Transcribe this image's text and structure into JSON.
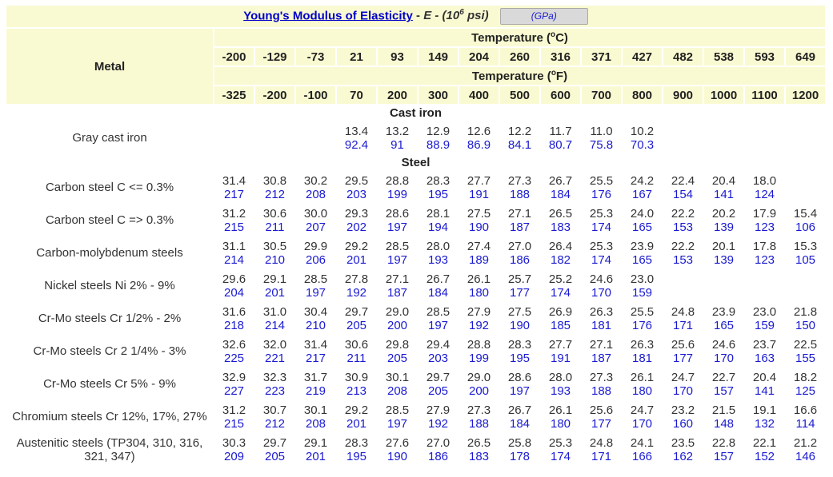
{
  "title": {
    "link_text": "Young's Modulus of Elasticity",
    "separator": "- ",
    "symbol": "E",
    "unit_prefix": " - (10",
    "unit_exp": "6",
    "unit_suffix": " psi)",
    "gpa_button": "(GPa)"
  },
  "headers": {
    "metal": "Metal",
    "temp_c_label": "Temperature (",
    "temp_c_unit": "C)",
    "temp_f_label": "Temperature (",
    "temp_f_unit": "F)",
    "degree": "o",
    "celsius": [
      "-200",
      "-129",
      "-73",
      "21",
      "93",
      "149",
      "204",
      "260",
      "316",
      "371",
      "427",
      "482",
      "538",
      "593",
      "649"
    ],
    "fahrenheit": [
      "-325",
      "-200",
      "-100",
      "70",
      "200",
      "300",
      "400",
      "500",
      "600",
      "700",
      "800",
      "900",
      "1000",
      "1100",
      "1200"
    ]
  },
  "sections": [
    {
      "name": "Cast iron",
      "rows": [
        {
          "metal": "Gray cast iron",
          "psi": [
            "",
            "",
            "",
            "13.4",
            "13.2",
            "12.9",
            "12.6",
            "12.2",
            "11.7",
            "11.0",
            "10.2",
            "",
            "",
            "",
            ""
          ],
          "gpa": [
            "",
            "",
            "",
            "92.4",
            "91",
            "88.9",
            "86.9",
            "84.1",
            "80.7",
            "75.8",
            "70.3",
            "",
            "",
            "",
            ""
          ]
        }
      ]
    },
    {
      "name": "Steel",
      "rows": [
        {
          "metal": "Carbon steel C <= 0.3%",
          "psi": [
            "31.4",
            "30.8",
            "30.2",
            "29.5",
            "28.8",
            "28.3",
            "27.7",
            "27.3",
            "26.7",
            "25.5",
            "24.2",
            "22.4",
            "20.4",
            "18.0",
            ""
          ],
          "gpa": [
            "217",
            "212",
            "208",
            "203",
            "199",
            "195",
            "191",
            "188",
            "184",
            "176",
            "167",
            "154",
            "141",
            "124",
            ""
          ]
        },
        {
          "metal": "Carbon steel C => 0.3%",
          "psi": [
            "31.2",
            "30.6",
            "30.0",
            "29.3",
            "28.6",
            "28.1",
            "27.5",
            "27.1",
            "26.5",
            "25.3",
            "24.0",
            "22.2",
            "20.2",
            "17.9",
            "15.4"
          ],
          "gpa": [
            "215",
            "211",
            "207",
            "202",
            "197",
            "194",
            "190",
            "187",
            "183",
            "174",
            "165",
            "153",
            "139",
            "123",
            "106"
          ]
        },
        {
          "metal": "Carbon-molybdenum steels",
          "psi": [
            "31.1",
            "30.5",
            "29.9",
            "29.2",
            "28.5",
            "28.0",
            "27.4",
            "27.0",
            "26.4",
            "25.3",
            "23.9",
            "22.2",
            "20.1",
            "17.8",
            "15.3"
          ],
          "gpa": [
            "214",
            "210",
            "206",
            "201",
            "197",
            "193",
            "189",
            "186",
            "182",
            "174",
            "165",
            "153",
            "139",
            "123",
            "105"
          ]
        },
        {
          "metal": "Nickel steels Ni 2% - 9%",
          "psi": [
            "29.6",
            "29.1",
            "28.5",
            "27.8",
            "27.1",
            "26.7",
            "26.1",
            "25.7",
            "25.2",
            "24.6",
            "23.0",
            "",
            "",
            "",
            ""
          ],
          "gpa": [
            "204",
            "201",
            "197",
            "192",
            "187",
            "184",
            "180",
            "177",
            "174",
            "170",
            "159",
            "",
            "",
            "",
            ""
          ]
        },
        {
          "metal": "Cr-Mo steels Cr 1/2% - 2%",
          "psi": [
            "31.6",
            "31.0",
            "30.4",
            "29.7",
            "29.0",
            "28.5",
            "27.9",
            "27.5",
            "26.9",
            "26.3",
            "25.5",
            "24.8",
            "23.9",
            "23.0",
            "21.8"
          ],
          "gpa": [
            "218",
            "214",
            "210",
            "205",
            "200",
            "197",
            "192",
            "190",
            "185",
            "181",
            "176",
            "171",
            "165",
            "159",
            "150"
          ]
        },
        {
          "metal": "Cr-Mo steels Cr 2 1/4% - 3%",
          "psi": [
            "32.6",
            "32.0",
            "31.4",
            "30.6",
            "29.8",
            "29.4",
            "28.8",
            "28.3",
            "27.7",
            "27.1",
            "26.3",
            "25.6",
            "24.6",
            "23.7",
            "22.5"
          ],
          "gpa": [
            "225",
            "221",
            "217",
            "211",
            "205",
            "203",
            "199",
            "195",
            "191",
            "187",
            "181",
            "177",
            "170",
            "163",
            "155"
          ]
        },
        {
          "metal": "Cr-Mo steels Cr 5% - 9%",
          "psi": [
            "32.9",
            "32.3",
            "31.7",
            "30.9",
            "30.1",
            "29.7",
            "29.0",
            "28.6",
            "28.0",
            "27.3",
            "26.1",
            "24.7",
            "22.7",
            "20.4",
            "18.2"
          ],
          "gpa": [
            "227",
            "223",
            "219",
            "213",
            "208",
            "205",
            "200",
            "197",
            "193",
            "188",
            "180",
            "170",
            "157",
            "141",
            "125"
          ]
        },
        {
          "metal": "Chromium steels Cr 12%, 17%, 27%",
          "psi": [
            "31.2",
            "30.7",
            "30.1",
            "29.2",
            "28.5",
            "27.9",
            "27.3",
            "26.7",
            "26.1",
            "25.6",
            "24.7",
            "23.2",
            "21.5",
            "19.1",
            "16.6"
          ],
          "gpa": [
            "215",
            "212",
            "208",
            "201",
            "197",
            "192",
            "188",
            "184",
            "180",
            "177",
            "170",
            "160",
            "148",
            "132",
            "114"
          ]
        },
        {
          "metal": "Austenitic steels (TP304, 310, 316, 321, 347)",
          "psi": [
            "30.3",
            "29.7",
            "29.1",
            "28.3",
            "27.6",
            "27.0",
            "26.5",
            "25.8",
            "25.3",
            "24.8",
            "24.1",
            "23.5",
            "22.8",
            "22.1",
            "21.2"
          ],
          "gpa": [
            "209",
            "205",
            "201",
            "195",
            "190",
            "186",
            "183",
            "178",
            "174",
            "171",
            "166",
            "162",
            "157",
            "152",
            "146"
          ]
        }
      ]
    }
  ]
}
